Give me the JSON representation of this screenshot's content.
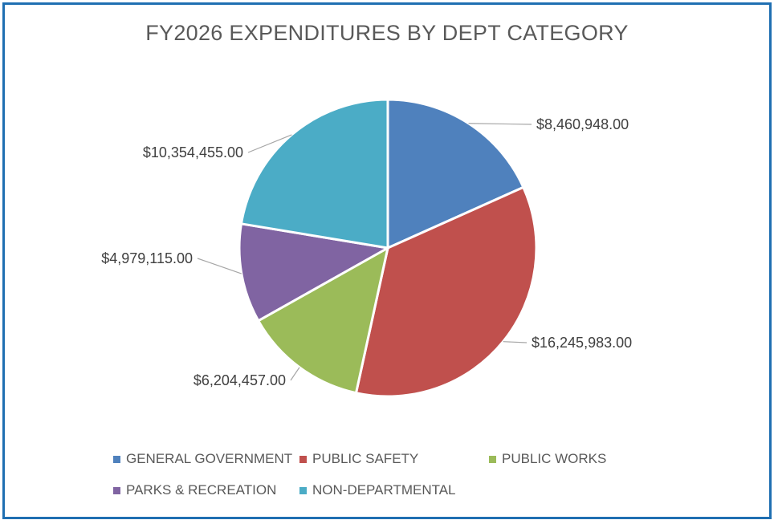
{
  "chart_data": {
    "type": "pie",
    "title": "FY2026 EXPENDITURES BY DEPT CATEGORY",
    "categories": [
      "GENERAL GOVERNMENT",
      "PUBLIC SAFETY",
      "PUBLIC WORKS",
      "PARKS & RECREATION",
      "NON-DEPARTMENTAL"
    ],
    "values": [
      8460948.0,
      16245983.0,
      6204457.0,
      4979115.0,
      10354455.0
    ],
    "data_labels": [
      "$8,460,948.00",
      "$16,245,983.00",
      "$6,204,457.00",
      "$4,979,115.00",
      "$10,354,455.00"
    ],
    "colors": [
      "#4f81bd",
      "#c0504d",
      "#9bbb59",
      "#8064a2",
      "#4bacc6"
    ],
    "legend_position": "bottom"
  }
}
